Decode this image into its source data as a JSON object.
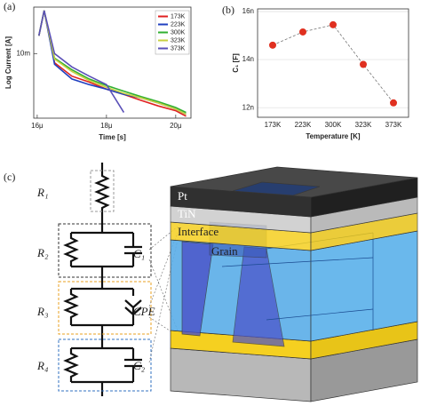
{
  "chart_data": [
    {
      "type": "line",
      "panel_label": "(a)",
      "xlabel": "Time [s]",
      "ylabel": "Log Current [A]",
      "x": [
        1.605e-05,
        1.62e-05,
        1.65e-05,
        1.7e-05,
        1.75e-05,
        1.8e-05,
        1.85e-05,
        1.9e-05,
        1.95e-05,
        2e-05,
        2.03e-05
      ],
      "xlim": [
        1.59e-05,
        2.044e-05
      ],
      "xticks": [
        {
          "value": 1.6e-05,
          "label": "16μ"
        },
        {
          "value": 1.8e-05,
          "label": "18μ"
        },
        {
          "value": 2e-05,
          "label": "20μ"
        }
      ],
      "ylim": [
        0.0019,
        0.033
      ],
      "yscale": "log",
      "yticks": [
        {
          "value": 0.01,
          "label": "10m"
        }
      ],
      "legend": "upper right",
      "series": [
        {
          "name": "173K",
          "color": "#e02020",
          "values": [
            0.0158,
            0.0302,
            0.0079,
            0.0056,
            0.0048,
            0.004,
            0.0035,
            0.003,
            0.0026,
            0.0023,
            0.002
          ]
        },
        {
          "name": "223K",
          "color": "#2040c0",
          "values": [
            0.0158,
            0.0302,
            0.0076,
            0.0052,
            0.0045,
            0.004,
            0.0035,
            0.0032,
            0.0028,
            0.0024,
            0.0021
          ]
        },
        {
          "name": "300K",
          "color": "#30b030",
          "values": [
            0.0158,
            0.0302,
            0.0089,
            0.0066,
            0.0052,
            0.0044,
            0.0038,
            0.0033,
            0.0029,
            0.0025,
            0.0022
          ]
        },
        {
          "name": "323K",
          "color": "#c8d040",
          "values": [
            0.0158,
            0.0302,
            0.0087,
            0.0063,
            0.005,
            0.0042,
            0.0036,
            0.0032,
            0.0028,
            0.0024,
            0.0021
          ]
        },
        {
          "name": "373K",
          "color": "#5a50b8",
          "values": [
            0.0158,
            0.0302,
            0.01,
            0.0071,
            0.0056,
            0.0045,
            0.0022,
            null,
            null,
            null,
            null
          ]
        }
      ]
    },
    {
      "type": "scatter",
      "panel_label": "(b)",
      "xlabel": "Temperature [K]",
      "ylabel": "C₁ [F]",
      "categories": [
        "173K",
        "223K",
        "300K",
        "323K",
        "373K"
      ],
      "values": [
        1.46e-08,
        1.515e-08,
        1.545e-08,
        1.38e-08,
        1.22e-08
      ],
      "color": "#e03020",
      "connect": "dashed",
      "grid": true,
      "ylim": [
        1.16e-08,
        1.611e-08
      ],
      "yticks": [
        {
          "value": 1.2e-08,
          "label": "12n"
        },
        {
          "value": 1.4e-08,
          "label": "14n"
        },
        {
          "value": 1.6e-08,
          "label": "16n"
        }
      ]
    }
  ],
  "diagram": {
    "panel_label": "(c)",
    "circuit": [
      "R₁",
      "R₂",
      "R₃",
      "R₄",
      "C₁",
      "CPE",
      "C₂"
    ],
    "layers": [
      "Pt",
      "TiN",
      "Interface",
      "Grain"
    ]
  }
}
